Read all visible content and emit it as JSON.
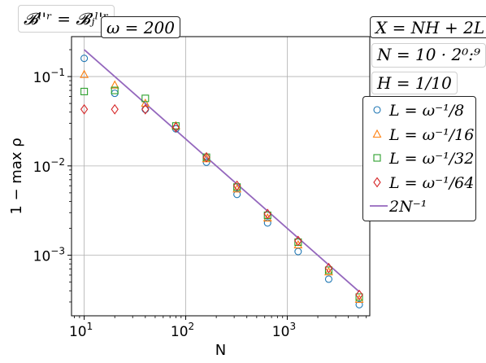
{
  "chart_data": {
    "type": "scatter",
    "title": "",
    "xlabel": "N",
    "ylabel": "1 − max ρ",
    "x_scale": "log",
    "y_scale": "log",
    "xlim": [
      7.5,
      6500
    ],
    "ylim": [
      0.00021,
      0.28
    ],
    "grid": true,
    "legend_position": "right",
    "x_ticks": [
      {
        "value": 10,
        "base": "10",
        "exp": "1"
      },
      {
        "value": 100,
        "base": "10",
        "exp": "2"
      },
      {
        "value": 1000,
        "base": "10",
        "exp": "3"
      }
    ],
    "y_ticks": [
      {
        "value": 0.1,
        "base": "10",
        "exp": "−1"
      },
      {
        "value": 0.01,
        "base": "10",
        "exp": "−2"
      },
      {
        "value": 0.001,
        "base": "10",
        "exp": "−3"
      }
    ],
    "x": [
      10,
      20,
      40,
      80,
      160,
      320,
      640,
      1280,
      2560,
      5120
    ],
    "series": [
      {
        "name": "L = ω⁻¹/8",
        "marker": "circle",
        "color": "#1f77b4",
        "values": [
          0.16,
          0.065,
          0.043,
          0.026,
          0.011,
          0.0048,
          0.0023,
          0.0011,
          0.00054,
          0.00028
        ]
      },
      {
        "name": "L = ω⁻¹/16",
        "marker": "triangle",
        "color": "#ff7f0e",
        "values": [
          0.105,
          0.08,
          0.05,
          0.028,
          0.012,
          0.0055,
          0.0026,
          0.0013,
          0.00065,
          0.00032
        ]
      },
      {
        "name": "L = ω⁻¹/32",
        "marker": "square",
        "color": "#2ca02c",
        "values": [
          0.068,
          0.07,
          0.057,
          0.028,
          0.0125,
          0.0058,
          0.0028,
          0.0014,
          0.00068,
          0.00034
        ]
      },
      {
        "name": "L = ω⁻¹/64",
        "marker": "diamond",
        "color": "#d62728",
        "values": [
          0.043,
          0.043,
          0.043,
          0.027,
          0.0125,
          0.006,
          0.0029,
          0.00145,
          0.00072,
          0.00036
        ]
      },
      {
        "name": "2N⁻¹",
        "marker": "line",
        "color": "#9467bd",
        "x": [
          10,
          5120
        ],
        "values": [
          0.2,
          0.000390625
        ]
      }
    ],
    "annotations": {
      "basis": "𝓑ˡ'ʳ = 𝓑ⱼˡ'ʳ",
      "omega": "ω = 200",
      "X": "X = NH + 2L",
      "N": "N = 10 · 2⁰:⁹",
      "H": "H = 1/10"
    }
  },
  "colors": {
    "grid": "#b0b0b0",
    "axis": "#000000"
  }
}
